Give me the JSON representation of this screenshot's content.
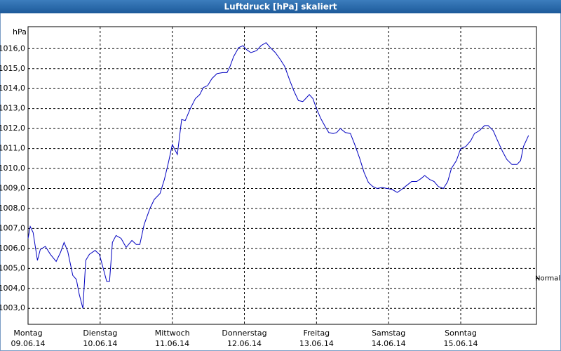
{
  "chart_data": {
    "type": "line",
    "title": "Luftdruck [hPa] skaliert",
    "y_unit": "hPa",
    "xlim": [
      0,
      7.05
    ],
    "ylim": [
      1002.2,
      1017.1
    ],
    "xticks": [
      {
        "value": 0,
        "label": "Montag"
      },
      {
        "value": 1,
        "label": "Dienstag"
      },
      {
        "value": 2,
        "label": "Mittwoch"
      },
      {
        "value": 3,
        "label": "Donnerstag"
      },
      {
        "value": 4,
        "label": "Freitag"
      },
      {
        "value": 5,
        "label": "Samstag"
      },
      {
        "value": 6,
        "label": "Sonntag"
      }
    ],
    "xtick_dates": [
      "09.06.14",
      "10.06.14",
      "11.06.14",
      "12.06.14",
      "13.06.14",
      "14.06.14",
      "15.06.14"
    ],
    "yticks": [
      {
        "value": 1003,
        "label": "1003,0"
      },
      {
        "value": 1004,
        "label": "1004,0"
      },
      {
        "value": 1005,
        "label": "1005,0"
      },
      {
        "value": 1006,
        "label": "1006,0"
      },
      {
        "value": 1007,
        "label": "1007,0"
      },
      {
        "value": 1008,
        "label": "1008,0"
      },
      {
        "value": 1009,
        "label": "1009,0"
      },
      {
        "value": 1010,
        "label": "1010,0"
      },
      {
        "value": 1011,
        "label": "1011,0"
      },
      {
        "value": 1012,
        "label": "1012,0"
      },
      {
        "value": 1013,
        "label": "1013,0"
      },
      {
        "value": 1014,
        "label": "1014,0"
      },
      {
        "value": 1015,
        "label": "1015,0"
      },
      {
        "value": 1016,
        "label": "1016,0"
      }
    ],
    "grid": true,
    "reference": {
      "label": "Normal",
      "value": 1004.5
    },
    "series": [
      {
        "color": "#0000c0",
        "x": [
          0,
          0.03,
          0.07,
          0.13,
          0.17,
          0.24,
          0.31,
          0.39,
          0.45,
          0.5,
          0.55,
          0.62,
          0.67,
          0.71,
          0.76,
          0.8,
          0.85,
          0.93,
          0.99,
          1.05,
          1.09,
          1.13,
          1.17,
          1.22,
          1.29,
          1.36,
          1.44,
          1.5,
          1.55,
          1.61,
          1.69,
          1.75,
          1.83,
          1.89,
          1.95,
          2.0,
          2.07,
          2.13,
          2.18,
          2.25,
          2.32,
          2.38,
          2.43,
          2.49,
          2.55,
          2.62,
          2.7,
          2.76,
          2.8,
          2.85,
          2.92,
          2.98,
          3.03,
          3.09,
          3.17,
          3.23,
          3.3,
          3.36,
          3.43,
          3.5,
          3.56,
          3.63,
          3.69,
          3.75,
          3.81,
          3.85,
          3.9,
          3.95,
          4.0,
          4.06,
          4.12,
          4.17,
          4.23,
          4.28,
          4.33,
          4.4,
          4.47,
          4.53,
          4.6,
          4.66,
          4.72,
          4.78,
          4.84,
          4.91,
          4.98,
          5.05,
          5.12,
          5.18,
          5.25,
          5.32,
          5.39,
          5.45,
          5.5,
          5.57,
          5.63,
          5.69,
          5.76,
          5.82,
          5.87,
          5.94,
          6.0,
          6.07,
          6.14,
          6.19,
          6.26,
          6.33,
          6.38,
          6.45,
          6.51,
          6.58,
          6.64,
          6.71,
          6.78,
          6.83,
          6.87,
          6.94
        ],
        "values": [
          1006.5,
          1007.1,
          1006.8,
          1005.4,
          1005.95,
          1006.1,
          1005.7,
          1005.35,
          1005.8,
          1006.3,
          1005.85,
          1004.65,
          1004.45,
          1003.7,
          1003.0,
          1005.4,
          1005.7,
          1005.9,
          1005.7,
          1004.9,
          1004.35,
          1004.35,
          1006.3,
          1006.65,
          1006.5,
          1006.05,
          1006.4,
          1006.2,
          1006.2,
          1007.2,
          1008.0,
          1008.45,
          1008.75,
          1009.45,
          1010.35,
          1011.2,
          1010.7,
          1012.45,
          1012.4,
          1013.0,
          1013.5,
          1013.7,
          1014.05,
          1014.15,
          1014.5,
          1014.75,
          1014.8,
          1014.8,
          1015.1,
          1015.6,
          1016.05,
          1016.15,
          1015.95,
          1015.8,
          1015.9,
          1016.15,
          1016.3,
          1016.05,
          1015.8,
          1015.45,
          1015.1,
          1014.4,
          1013.85,
          1013.4,
          1013.35,
          1013.5,
          1013.7,
          1013.5,
          1013.0,
          1012.5,
          1012.1,
          1011.8,
          1011.75,
          1011.8,
          1012.0,
          1011.8,
          1011.75,
          1011.2,
          1010.5,
          1009.8,
          1009.3,
          1009.1,
          1009.0,
          1009.05,
          1009.0,
          1008.95,
          1008.8,
          1008.95,
          1009.15,
          1009.35,
          1009.35,
          1009.5,
          1009.65,
          1009.45,
          1009.35,
          1009.1,
          1009.0,
          1009.35,
          1010.0,
          1010.4,
          1011.0,
          1011.1,
          1011.4,
          1011.75,
          1011.9,
          1012.15,
          1012.15,
          1011.9,
          1011.4,
          1010.85,
          1010.45,
          1010.2,
          1010.2,
          1010.4,
          1011.1,
          1011.65
        ]
      }
    ]
  }
}
